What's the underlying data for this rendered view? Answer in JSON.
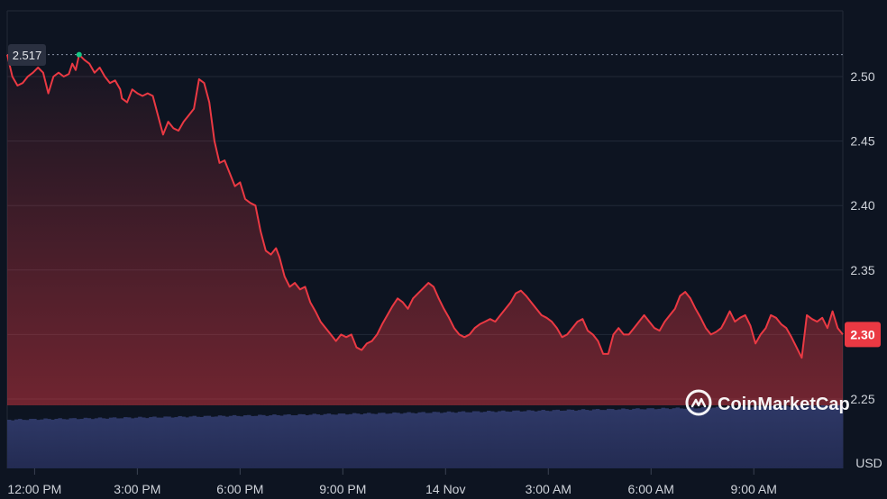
{
  "chart_data": {
    "type": "line",
    "title": "",
    "xlabel": "",
    "ylabel": "",
    "y_unit": "USD",
    "ylim": [
      2.225,
      2.535
    ],
    "y_ticks": [
      2.25,
      2.3,
      2.35,
      2.4,
      2.45,
      2.5
    ],
    "y_tick_labels": [
      "2.25",
      "2.30",
      "2.35",
      "2.40",
      "2.45",
      "2.50"
    ],
    "x_tick_labels": [
      "12:00 PM",
      "3:00 PM",
      "6:00 PM",
      "9:00 PM",
      "14 Nov",
      "3:00 AM",
      "6:00 AM",
      "9:00 AM"
    ],
    "x_tick_hours": [
      1,
      4,
      7,
      10,
      13,
      16,
      19,
      22
    ],
    "x_range_hours": [
      0.2,
      24.6
    ],
    "open_reference": {
      "value": 2.517,
      "label": "2.517"
    },
    "last_value": {
      "value": 2.3,
      "label": "2.30"
    },
    "grid": true,
    "line_color": "#ea3943",
    "marker_color": "#16c784",
    "volume_color": "#2b3561",
    "watermark": "CoinMarketCap",
    "series": [
      {
        "x": [
          0.2,
          0.35,
          0.5,
          0.65,
          0.8,
          0.95,
          1.1,
          1.25,
          1.4,
          1.55,
          1.7,
          1.85,
          2.0,
          2.1,
          2.2,
          2.3,
          2.45,
          2.6,
          2.75,
          2.9,
          3.05,
          3.2,
          3.35,
          3.5,
          3.55,
          3.7,
          3.85,
          4.0,
          4.15,
          4.3,
          4.45,
          4.6,
          4.75,
          4.9,
          5.05,
          5.2,
          5.35,
          5.5,
          5.65,
          5.8,
          5.95,
          6.1,
          6.25,
          6.4,
          6.55,
          6.7,
          6.85,
          7.0,
          7.15,
          7.3,
          7.45,
          7.6,
          7.75,
          7.9,
          8.05,
          8.15,
          8.3,
          8.45,
          8.6,
          8.75,
          8.9,
          9.05,
          9.2,
          9.35,
          9.5,
          9.65,
          9.8,
          9.95,
          10.1,
          10.25,
          10.4,
          10.55,
          10.7,
          10.85,
          11.0,
          11.15,
          11.3,
          11.45,
          11.6,
          11.75,
          11.9,
          12.05,
          12.2,
          12.35,
          12.5,
          12.65,
          12.8,
          12.95,
          13.1,
          13.25,
          13.4,
          13.55,
          13.7,
          13.85,
          14.0,
          14.15,
          14.3,
          14.45,
          14.6,
          14.75,
          14.9,
          15.05,
          15.2,
          15.35,
          15.5,
          15.65,
          15.8,
          15.95,
          16.1,
          16.25,
          16.4,
          16.55,
          16.7,
          16.85,
          17.0,
          17.15,
          17.3,
          17.45,
          17.6,
          17.75,
          17.9,
          18.05,
          18.2,
          18.35,
          18.5,
          18.65,
          18.8,
          18.95,
          19.1,
          19.25,
          19.4,
          19.55,
          19.7,
          19.85,
          20.0,
          20.15,
          20.3,
          20.45,
          20.6,
          20.75,
          20.9,
          21.05,
          21.15,
          21.3,
          21.45,
          21.6,
          21.75,
          21.9,
          22.05,
          22.2,
          22.35,
          22.5,
          22.65,
          22.8,
          22.95,
          23.1,
          23.25,
          23.4,
          23.55,
          23.7,
          23.85,
          24.0,
          24.15,
          24.3,
          24.45,
          24.6
        ],
        "y": [
          2.517,
          2.5,
          2.493,
          2.495,
          2.5,
          2.503,
          2.507,
          2.503,
          2.487,
          2.5,
          2.503,
          2.5,
          2.502,
          2.51,
          2.505,
          2.517,
          2.513,
          2.51,
          2.503,
          2.507,
          2.5,
          2.495,
          2.497,
          2.49,
          2.483,
          2.48,
          2.49,
          2.487,
          2.485,
          2.487,
          2.485,
          2.47,
          2.455,
          2.465,
          2.46,
          2.458,
          2.465,
          2.47,
          2.475,
          2.498,
          2.495,
          2.48,
          2.45,
          2.433,
          2.435,
          2.425,
          2.415,
          2.418,
          2.405,
          2.402,
          2.4,
          2.38,
          2.365,
          2.362,
          2.367,
          2.36,
          2.345,
          2.337,
          2.34,
          2.335,
          2.337,
          2.325,
          2.318,
          2.31,
          2.305,
          2.3,
          2.295,
          2.3,
          2.298,
          2.3,
          2.29,
          2.288,
          2.293,
          2.295,
          2.3,
          2.308,
          2.315,
          2.322,
          2.328,
          2.325,
          2.32,
          2.328,
          2.332,
          2.336,
          2.34,
          2.337,
          2.328,
          2.32,
          2.313,
          2.305,
          2.3,
          2.298,
          2.3,
          2.305,
          2.308,
          2.31,
          2.312,
          2.31,
          2.315,
          2.32,
          2.325,
          2.332,
          2.334,
          2.33,
          2.325,
          2.32,
          2.315,
          2.313,
          2.31,
          2.305,
          2.298,
          2.3,
          2.305,
          2.31,
          2.312,
          2.303,
          2.3,
          2.295,
          2.285,
          2.285,
          2.3,
          2.305,
          2.3,
          2.3,
          2.305,
          2.31,
          2.315,
          2.31,
          2.305,
          2.303,
          2.31,
          2.315,
          2.32,
          2.33,
          2.333,
          2.328,
          2.32,
          2.313,
          2.305,
          2.3,
          2.302,
          2.305,
          2.31,
          2.318,
          2.31,
          2.313,
          2.315,
          2.307,
          2.293,
          2.3,
          2.305,
          2.315,
          2.313,
          2.308,
          2.305,
          2.298,
          2.29,
          2.282,
          2.315,
          2.312,
          2.31,
          2.313,
          2.305,
          2.318,
          2.305,
          2.3
        ]
      }
    ]
  }
}
